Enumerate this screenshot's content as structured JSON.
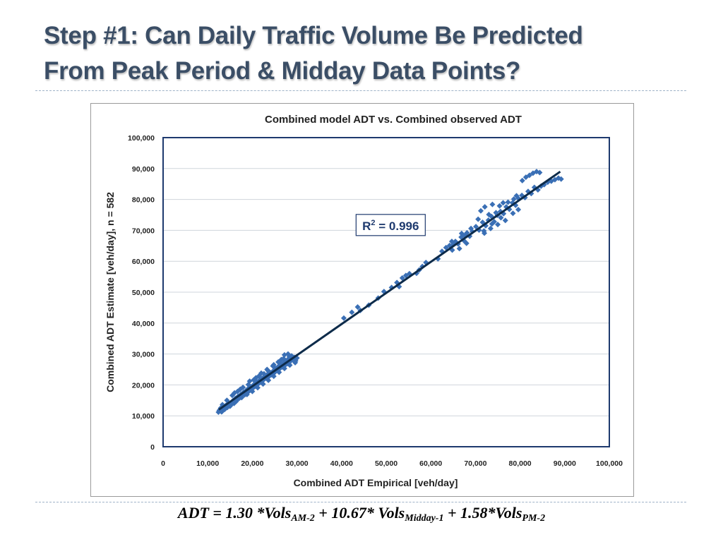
{
  "slide": {
    "title_line1": "Step #1:  Can Daily Traffic Volume Be Predicted",
    "title_line2": "From Peak Period & Midday Data Points?",
    "title_color": "#3b4e66",
    "formula": {
      "lhs": "ADT = 1.30 *Vols",
      "sub1": "AM-2",
      "mid1": " + 10.67* Vols",
      "sub2": "Midday-1",
      "mid2": " + 1.58*Vols",
      "sub3": "PM-2"
    }
  },
  "chart_data": {
    "type": "scatter",
    "title": "Combined model ADT vs. Combined observed ADT",
    "xlabel": "Combined ADT Empirical [veh/day]",
    "ylabel": "Combined ADT Estimate [veh/day], n = 582",
    "xlim": [
      0,
      100000
    ],
    "ylim": [
      0,
      100000
    ],
    "x_ticks": [
      "0",
      "10,000",
      "20,000",
      "30,000",
      "40,000",
      "50,000",
      "60,000",
      "70,000",
      "80,000",
      "90,000",
      "100,000"
    ],
    "y_ticks": [
      "0",
      "10,000",
      "20,000",
      "30,000",
      "40,000",
      "50,000",
      "60,000",
      "70,000",
      "80,000",
      "90,000",
      "100,000"
    ],
    "grid": "horizontal",
    "annotation": {
      "label": "R",
      "superscript": "2",
      "text": " = 0.996",
      "x": 51000,
      "y": 71500
    },
    "trendline": {
      "x": [
        12500,
        89000
      ],
      "y": [
        12000,
        89000
      ],
      "color": "#0d2b4a"
    },
    "marker_color": "#3a6fb5",
    "series": [
      {
        "points": [
          [
            12600,
            11800
          ],
          [
            12900,
            12500
          ],
          [
            13200,
            11400
          ],
          [
            13500,
            12900
          ],
          [
            13800,
            12100
          ],
          [
            14100,
            13400
          ],
          [
            14400,
            12700
          ],
          [
            14700,
            13900
          ],
          [
            15000,
            13100
          ],
          [
            15300,
            14300
          ],
          [
            15600,
            14800
          ],
          [
            15900,
            14000
          ],
          [
            16200,
            15600
          ],
          [
            16500,
            15100
          ],
          [
            16800,
            16300
          ],
          [
            17100,
            15700
          ],
          [
            17400,
            16900
          ],
          [
            17700,
            16400
          ],
          [
            18000,
            17600
          ],
          [
            18300,
            16800
          ],
          [
            18600,
            18200
          ],
          [
            18900,
            17500
          ],
          [
            19200,
            19000
          ],
          [
            19500,
            18300
          ],
          [
            19800,
            19400
          ],
          [
            20100,
            18900
          ],
          [
            20400,
            20200
          ],
          [
            20700,
            19600
          ],
          [
            21000,
            21000
          ],
          [
            21300,
            20300
          ],
          [
            21600,
            21500
          ],
          [
            21900,
            20900
          ],
          [
            22200,
            22100
          ],
          [
            22500,
            21600
          ],
          [
            22800,
            22800
          ],
          [
            23100,
            22200
          ],
          [
            23400,
            23400
          ],
          [
            23700,
            22700
          ],
          [
            24000,
            24000
          ],
          [
            24300,
            23300
          ],
          [
            24600,
            24400
          ],
          [
            24900,
            23900
          ],
          [
            25200,
            25300
          ],
          [
            25500,
            24700
          ],
          [
            25800,
            25900
          ],
          [
            26100,
            25200
          ],
          [
            26400,
            26600
          ],
          [
            26700,
            25800
          ],
          [
            27000,
            27100
          ],
          [
            27300,
            26300
          ],
          [
            27600,
            27700
          ],
          [
            27900,
            26900
          ],
          [
            28200,
            28600
          ],
          [
            28500,
            27600
          ],
          [
            28800,
            29400
          ],
          [
            29100,
            28200
          ],
          [
            29400,
            28900
          ],
          [
            29700,
            27800
          ],
          [
            30000,
            28700
          ],
          [
            28000,
            30000
          ],
          [
            27200,
            29700
          ],
          [
            26500,
            28200
          ],
          [
            25800,
            27400
          ],
          [
            24800,
            26500
          ],
          [
            23500,
            24600
          ],
          [
            22600,
            23600
          ],
          [
            21500,
            22900
          ],
          [
            20300,
            21600
          ],
          [
            19100,
            20100
          ],
          [
            17900,
            19200
          ],
          [
            16700,
            17900
          ],
          [
            15500,
            16600
          ],
          [
            14300,
            15000
          ],
          [
            13300,
            13600
          ],
          [
            12400,
            11200
          ],
          [
            13100,
            11300
          ],
          [
            14000,
            12400
          ],
          [
            15200,
            13500
          ],
          [
            16400,
            14700
          ],
          [
            17600,
            15900
          ],
          [
            18800,
            16900
          ],
          [
            20000,
            17900
          ],
          [
            21200,
            19100
          ],
          [
            22400,
            20300
          ],
          [
            23600,
            21500
          ],
          [
            24800,
            22800
          ],
          [
            26000,
            24100
          ],
          [
            27200,
            25300
          ],
          [
            28400,
            26400
          ],
          [
            29600,
            27200
          ],
          [
            19400,
            21200
          ],
          [
            20800,
            22300
          ],
          [
            22000,
            23800
          ],
          [
            23300,
            25000
          ],
          [
            24600,
            26100
          ],
          [
            25900,
            27300
          ],
          [
            27000,
            28500
          ],
          [
            28300,
            29200
          ],
          [
            16000,
            17400
          ],
          [
            17300,
            18600
          ],
          [
            40500,
            41600
          ],
          [
            42300,
            43500
          ],
          [
            43600,
            45200
          ],
          [
            44200,
            44100
          ],
          [
            46100,
            45800
          ],
          [
            48200,
            48100
          ],
          [
            49500,
            50200
          ],
          [
            51200,
            51500
          ],
          [
            52400,
            53100
          ],
          [
            53600,
            54600
          ],
          [
            54400,
            55400
          ],
          [
            55200,
            56000
          ],
          [
            56800,
            56100
          ],
          [
            58100,
            58300
          ],
          [
            58900,
            59600
          ],
          [
            57400,
            57200
          ],
          [
            52900,
            51800
          ],
          [
            61600,
            60800
          ],
          [
            62500,
            63200
          ],
          [
            63400,
            64400
          ],
          [
            64200,
            65100
          ],
          [
            64800,
            63600
          ],
          [
            65500,
            66400
          ],
          [
            66100,
            65600
          ],
          [
            66800,
            67800
          ],
          [
            67400,
            66700
          ],
          [
            68100,
            69200
          ],
          [
            68700,
            68100
          ],
          [
            69300,
            69600
          ],
          [
            70100,
            71200
          ],
          [
            70800,
            70100
          ],
          [
            71600,
            72600
          ],
          [
            72300,
            71500
          ],
          [
            72900,
            73300
          ],
          [
            73600,
            74500
          ],
          [
            74200,
            72800
          ],
          [
            74900,
            74900
          ],
          [
            75600,
            76100
          ],
          [
            76300,
            75400
          ],
          [
            76900,
            77600
          ],
          [
            77600,
            76800
          ],
          [
            78300,
            78900
          ],
          [
            79000,
            78100
          ],
          [
            79700,
            80200
          ],
          [
            80400,
            81300
          ],
          [
            81100,
            80600
          ],
          [
            81800,
            82600
          ],
          [
            82500,
            81900
          ],
          [
            83200,
            83900
          ],
          [
            84000,
            83100
          ],
          [
            84700,
            84300
          ],
          [
            85400,
            84800
          ],
          [
            86200,
            85600
          ],
          [
            87000,
            85900
          ],
          [
            87800,
            86400
          ],
          [
            88600,
            86900
          ],
          [
            89200,
            86600
          ],
          [
            80500,
            86100
          ],
          [
            81300,
            87200
          ],
          [
            82100,
            87800
          ],
          [
            82900,
            88500
          ],
          [
            83700,
            89000
          ],
          [
            84400,
            88700
          ],
          [
            71200,
            76300
          ],
          [
            72100,
            77600
          ],
          [
            73000,
            75100
          ],
          [
            73800,
            78400
          ],
          [
            74600,
            75700
          ],
          [
            75400,
            77900
          ],
          [
            76200,
            78900
          ],
          [
            70600,
            73600
          ],
          [
            71900,
            69800
          ],
          [
            73400,
            70600
          ],
          [
            75000,
            71900
          ],
          [
            76700,
            73200
          ],
          [
            78400,
            75500
          ],
          [
            79600,
            76700
          ],
          [
            68000,
            65800
          ],
          [
            66400,
            64100
          ],
          [
            65000,
            65400
          ],
          [
            72000,
            69100
          ],
          [
            73700,
            72100
          ],
          [
            75700,
            74100
          ],
          [
            77300,
            79100
          ],
          [
            78600,
            80100
          ],
          [
            79200,
            81200
          ],
          [
            69000,
            70600
          ],
          [
            67600,
            68300
          ],
          [
            66900,
            69000
          ],
          [
            64700,
            66400
          ]
        ]
      }
    ]
  }
}
